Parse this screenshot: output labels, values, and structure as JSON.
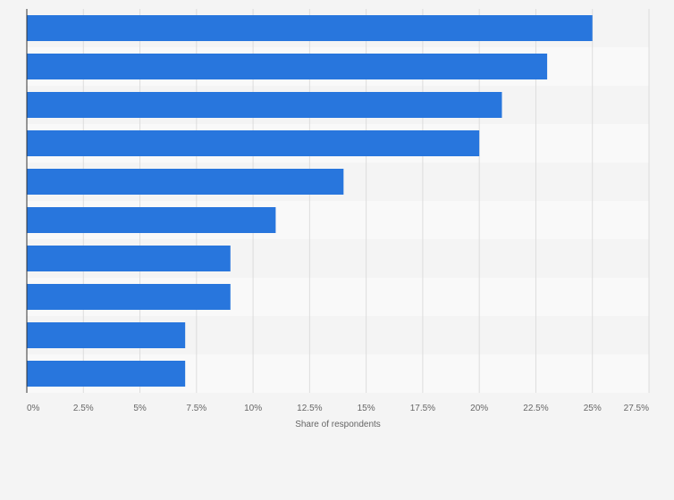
{
  "chart_data": {
    "type": "bar",
    "orientation": "horizontal",
    "title": "",
    "xlabel": "Share of respondents",
    "ylabel": "",
    "categories": [
      "",
      "",
      "",
      "",
      "",
      "",
      "",
      "",
      "",
      ""
    ],
    "values": [
      25,
      23,
      21,
      20,
      14,
      11,
      9,
      9,
      7,
      7
    ],
    "value_unit": "%",
    "xlim": [
      0,
      27.5
    ],
    "x_ticks": [
      0,
      2.5,
      5,
      7.5,
      10,
      12.5,
      15,
      17.5,
      20,
      22.5,
      25,
      27.5
    ],
    "x_tick_labels": [
      "0%",
      "2.5%",
      "5%",
      "7.5%",
      "10%",
      "12.5%",
      "15%",
      "17.5%",
      "20%",
      "22.5%",
      "25%",
      "27.5%"
    ],
    "grid": true,
    "legend": "none",
    "colors": {
      "bar": "#2876dd",
      "background": "#f4f4f4",
      "band_alt": "#f9f9f9",
      "grid": "#dddddd",
      "axis": "#333333",
      "text": "#666666"
    }
  }
}
